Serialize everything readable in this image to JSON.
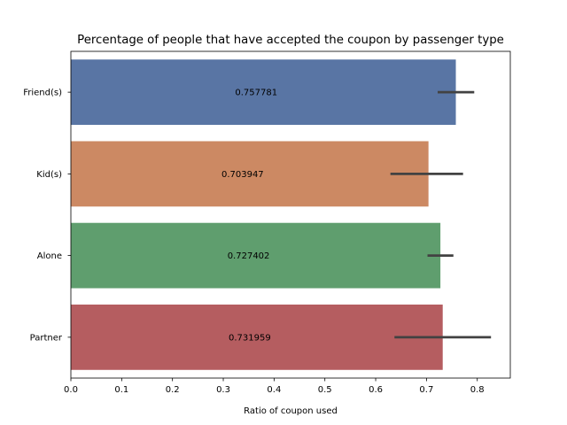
{
  "chart_data": {
    "type": "bar",
    "orientation": "horizontal",
    "title": "Percentage of people that have accepted the coupon by passenger type",
    "xlabel": "Ratio of coupon used",
    "ylabel": "",
    "xlim": [
      0,
      0.865
    ],
    "xticks": [
      0.0,
      0.1,
      0.2,
      0.3,
      0.4,
      0.5,
      0.6,
      0.7,
      0.8
    ],
    "xtick_labels": [
      "0.0",
      "0.1",
      "0.2",
      "0.3",
      "0.4",
      "0.5",
      "0.6",
      "0.7",
      "0.8"
    ],
    "categories": [
      "Friend(s)",
      "Kid(s)",
      "Alone",
      "Partner"
    ],
    "values": [
      0.757781,
      0.703947,
      0.727402,
      0.731959
    ],
    "value_labels": [
      "0.757781",
      "0.703947",
      "0.727402",
      "0.731959"
    ],
    "error_bars": [
      {
        "low": 0.722,
        "high": 0.794
      },
      {
        "low": 0.629,
        "high": 0.772
      },
      {
        "low": 0.702,
        "high": 0.753
      },
      {
        "low": 0.637,
        "high": 0.827
      }
    ],
    "colors": [
      "#5975a4",
      "#cc8963",
      "#5f9e6e",
      "#b55d60"
    ],
    "errorbar_color": "#424242",
    "grid": false,
    "legend": "none"
  }
}
